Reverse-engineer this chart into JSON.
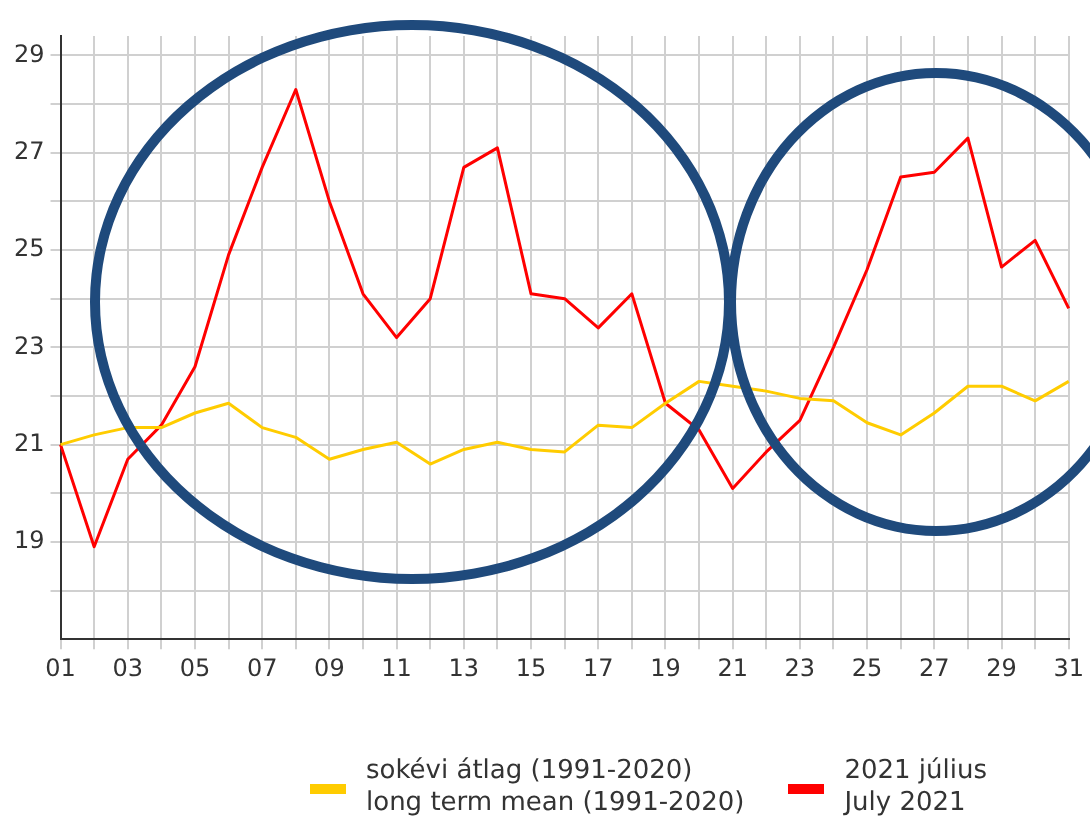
{
  "chart_data": {
    "type": "line",
    "categories": [
      "01",
      null,
      "03",
      null,
      "05",
      null,
      "07",
      null,
      "09",
      null,
      "11",
      null,
      "13",
      null,
      "15",
      null,
      "17",
      null,
      "19",
      null,
      "21",
      null,
      "23",
      null,
      "25",
      null,
      "27",
      null,
      "29",
      null,
      "31"
    ],
    "series": [
      {
        "name": "sokévi átlag (1991-2020)\nlong term mean (1991-2020)",
        "color": "#ffcc00",
        "values": [
          21.0,
          21.2,
          21.35,
          21.35,
          21.65,
          21.85,
          21.35,
          21.15,
          20.7,
          20.9,
          21.05,
          20.6,
          20.9,
          21.05,
          20.9,
          20.85,
          21.4,
          21.35,
          21.85,
          22.3,
          22.2,
          22.1,
          21.95,
          21.9,
          21.45,
          21.2,
          21.65,
          22.2,
          22.2,
          21.9,
          22.3
        ]
      },
      {
        "name": "2021 július\nJuly 2021",
        "color": "#ff0000",
        "values": [
          21.0,
          18.9,
          20.7,
          21.4,
          22.6,
          24.9,
          26.7,
          28.3,
          26.0,
          24.1,
          23.2,
          24.0,
          26.7,
          27.1,
          24.1,
          24.0,
          23.4,
          24.1,
          21.85,
          21.3,
          20.1,
          20.85,
          21.5,
          23.0,
          24.6,
          26.5,
          26.6,
          27.3,
          24.65,
          25.2,
          23.8
        ]
      }
    ],
    "ylim": [
      17,
      29.4
    ],
    "yticks": [
      {
        "value": 18,
        "label": null
      },
      19,
      {
        "value": 20,
        "label": null
      },
      21,
      {
        "value": 22,
        "label": null
      },
      23,
      {
        "value": 24,
        "label": null
      },
      25,
      {
        "value": 26,
        "label": null
      },
      27,
      {
        "value": 28,
        "label": null
      },
      29
    ],
    "grid": true,
    "legend": "bottom",
    "marker": "none",
    "line_style": "solid"
  }
}
